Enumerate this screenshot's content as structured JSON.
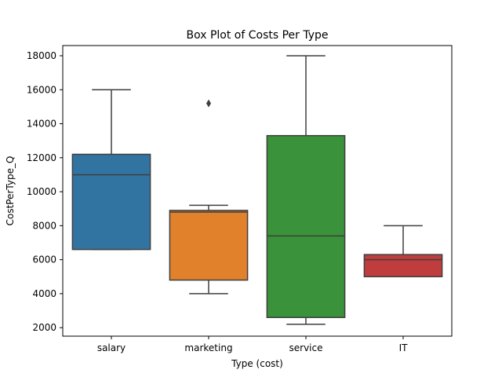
{
  "chart_data": {
    "type": "box",
    "title": "Box Plot of Costs Per Type",
    "xlabel": "Type (cost)",
    "ylabel": "CostPerType_Q",
    "categories": [
      "salary",
      "marketing",
      "service",
      "IT"
    ],
    "ylim": [
      1500,
      18600
    ],
    "yticks": [
      2000,
      4000,
      6000,
      8000,
      10000,
      12000,
      14000,
      16000,
      18000
    ],
    "grid": false,
    "colors": [
      "#3274a1",
      "#e1812c",
      "#3a923a",
      "#c03d3e"
    ],
    "edge_color": "#3f3f3f",
    "boxes": [
      {
        "category": "salary",
        "whisker_low": 6600,
        "q1": 6600,
        "median": 11000,
        "q3": 12200,
        "whisker_high": 16000,
        "outliers": []
      },
      {
        "category": "marketing",
        "whisker_low": 4000,
        "q1": 4800,
        "median": 8800,
        "q3": 8900,
        "whisker_high": 9200,
        "outliers": [
          15200
        ]
      },
      {
        "category": "service",
        "whisker_low": 2200,
        "q1": 2600,
        "median": 7400,
        "q3": 13300,
        "whisker_high": 18000,
        "outliers": []
      },
      {
        "category": "IT",
        "whisker_low": 5000,
        "q1": 5000,
        "median": 6000,
        "q3": 6300,
        "whisker_high": 8000,
        "outliers": []
      }
    ]
  }
}
